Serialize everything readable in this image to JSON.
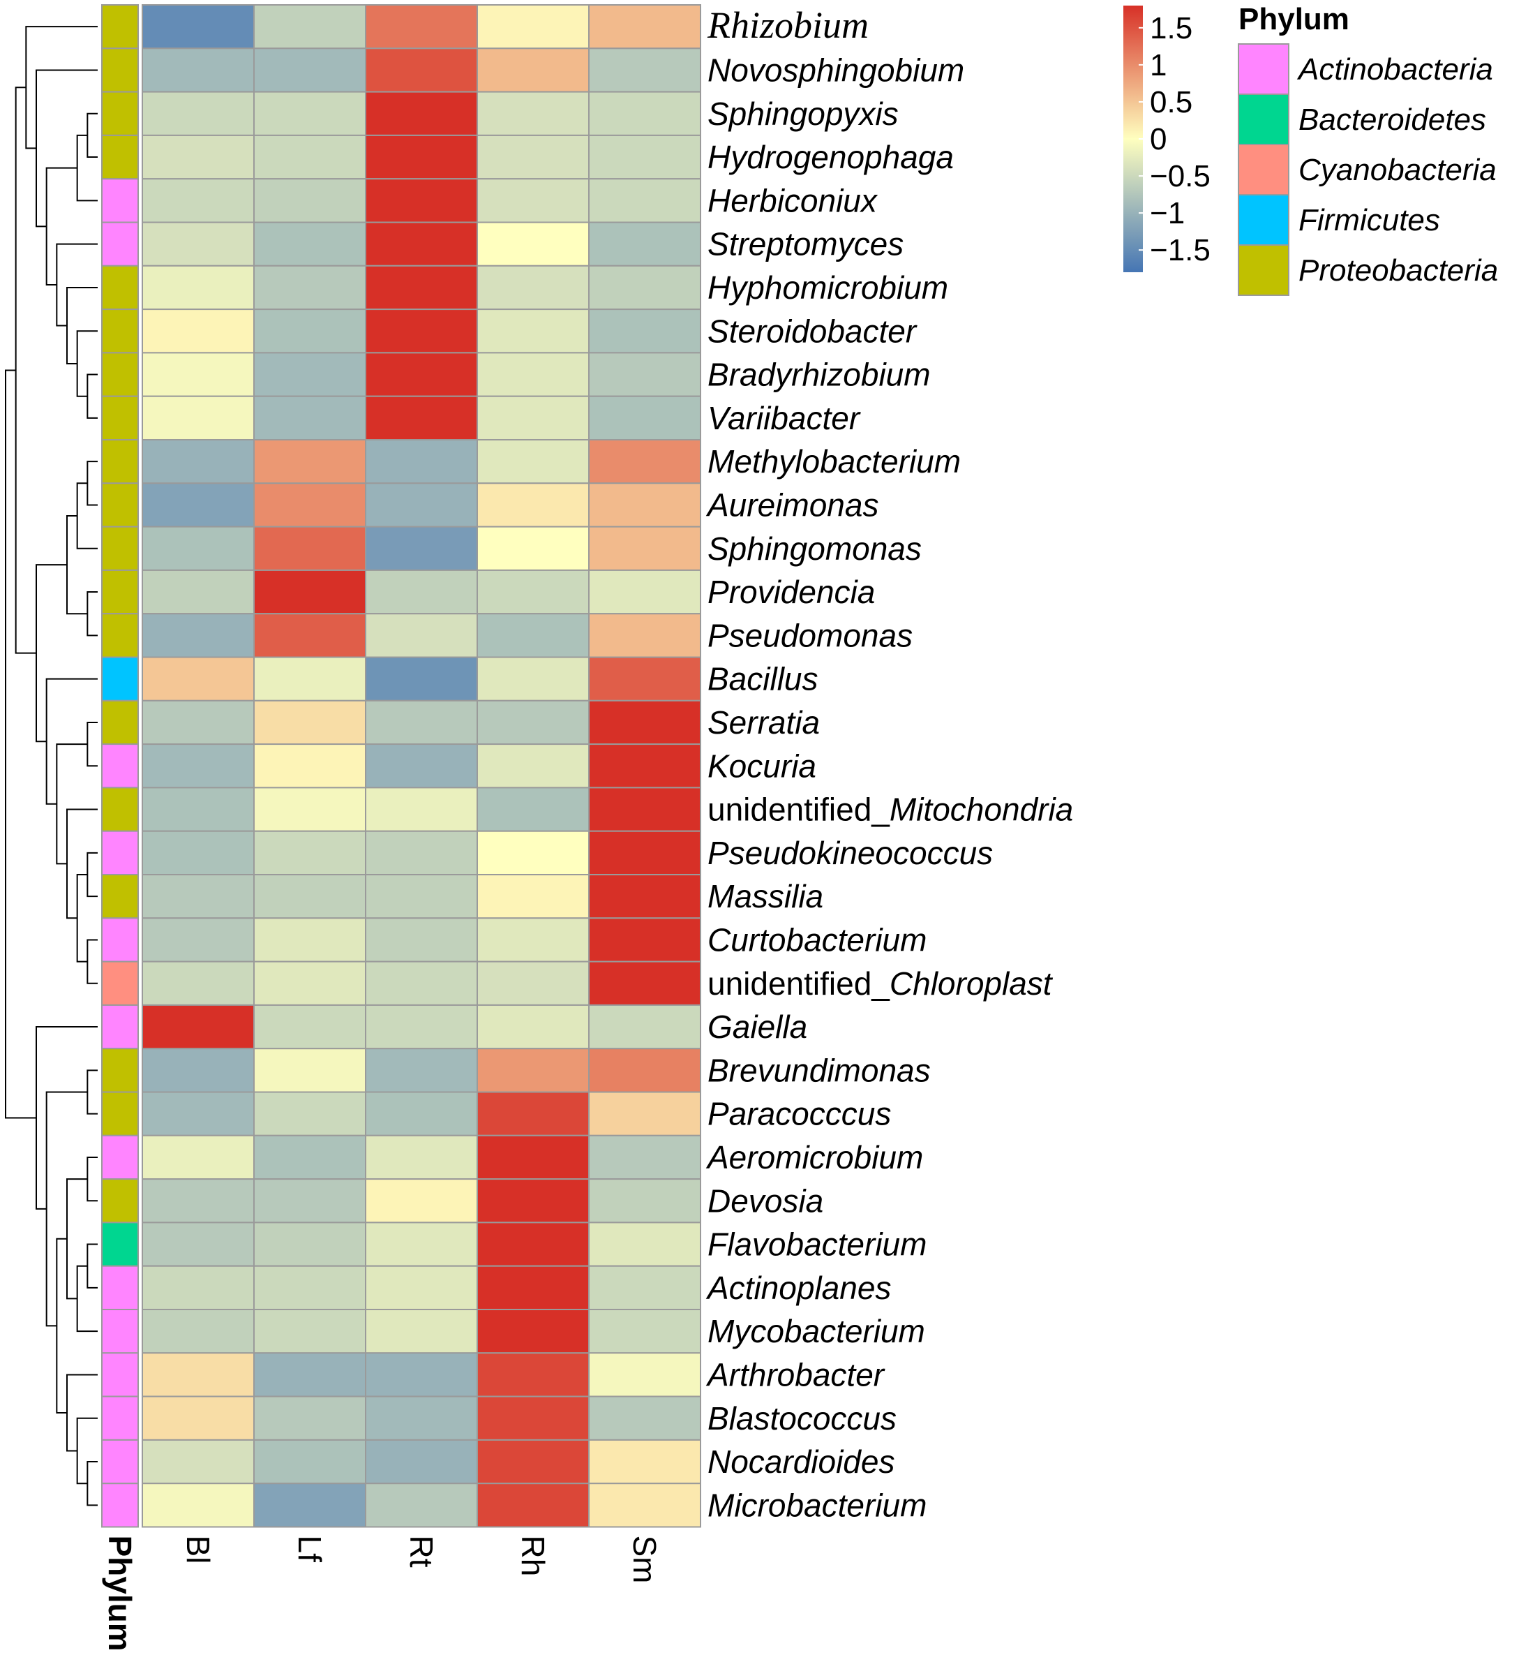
{
  "chart_data": {
    "type": "heatmap",
    "title": "",
    "columns": [
      "Bl",
      "Lf",
      "Rt",
      "Rh",
      "Sm"
    ],
    "annotation_label": "Phylum",
    "rows": [
      {
        "name": "Rhizobium",
        "phylum": "Proteobacteria",
        "values": [
          -1.5,
          -0.6,
          1.2,
          0.1,
          0.6
        ]
      },
      {
        "name": "Novosphingobium",
        "phylum": "Proteobacteria",
        "values": [
          -0.9,
          -0.9,
          1.5,
          0.6,
          -0.7
        ]
      },
      {
        "name": "Sphingopyxis",
        "phylum": "Proteobacteria",
        "values": [
          -0.5,
          -0.5,
          1.8,
          -0.4,
          -0.5
        ]
      },
      {
        "name": "Hydrogenophaga",
        "phylum": "Proteobacteria",
        "values": [
          -0.4,
          -0.5,
          1.8,
          -0.4,
          -0.5
        ]
      },
      {
        "name": "Herbiconiux",
        "phylum": "Actinobacteria",
        "values": [
          -0.5,
          -0.6,
          1.8,
          -0.4,
          -0.5
        ]
      },
      {
        "name": "Streptomyces",
        "phylum": "Actinobacteria",
        "values": [
          -0.4,
          -0.8,
          1.8,
          0.0,
          -0.8
        ]
      },
      {
        "name": "Hyphomicrobium",
        "phylum": "Proteobacteria",
        "values": [
          -0.2,
          -0.7,
          1.8,
          -0.4,
          -0.6
        ]
      },
      {
        "name": "Steroidobacter",
        "phylum": "Proteobacteria",
        "values": [
          0.1,
          -0.8,
          1.8,
          -0.3,
          -0.8
        ]
      },
      {
        "name": "Bradyrhizobium",
        "phylum": "Proteobacteria",
        "values": [
          -0.1,
          -0.9,
          1.8,
          -0.3,
          -0.7
        ]
      },
      {
        "name": "Variibacter",
        "phylum": "Proteobacteria",
        "values": [
          -0.1,
          -0.9,
          1.8,
          -0.3,
          -0.8
        ]
      },
      {
        "name": "Methylobacterium",
        "phylum": "Proteobacteria",
        "values": [
          -1.0,
          0.9,
          -1.0,
          -0.3,
          1.0
        ]
      },
      {
        "name": "Aureimonas",
        "phylum": "Proteobacteria",
        "values": [
          -1.2,
          1.0,
          -1.0,
          0.2,
          0.6
        ]
      },
      {
        "name": "Sphingomonas",
        "phylum": "Proteobacteria",
        "values": [
          -0.8,
          1.3,
          -1.3,
          0.0,
          0.6
        ]
      },
      {
        "name": "Providencia",
        "phylum": "Proteobacteria",
        "values": [
          -0.6,
          1.8,
          -0.6,
          -0.5,
          -0.3
        ]
      },
      {
        "name": "Pseudomonas",
        "phylum": "Proteobacteria",
        "values": [
          -1.0,
          1.4,
          -0.4,
          -0.8,
          0.6
        ]
      },
      {
        "name": "Bacillus",
        "phylum": "Firmicutes",
        "values": [
          0.5,
          -0.2,
          -1.4,
          -0.3,
          1.4
        ]
      },
      {
        "name": "Serratia",
        "phylum": "Proteobacteria",
        "values": [
          -0.7,
          0.3,
          -0.7,
          -0.7,
          1.8
        ]
      },
      {
        "name": "Kocuria",
        "phylum": "Actinobacteria",
        "values": [
          -0.9,
          0.1,
          -1.0,
          -0.3,
          1.8
        ]
      },
      {
        "name": "unidentified_Mitochondria",
        "phylum": "Proteobacteria",
        "values": [
          -0.8,
          -0.1,
          -0.2,
          -0.8,
          1.8
        ]
      },
      {
        "name": "Pseudokineococcus",
        "phylum": "Actinobacteria",
        "values": [
          -0.8,
          -0.5,
          -0.6,
          0.0,
          1.8
        ]
      },
      {
        "name": "Massilia",
        "phylum": "Proteobacteria",
        "values": [
          -0.7,
          -0.6,
          -0.6,
          0.1,
          1.8
        ]
      },
      {
        "name": "Curtobacterium",
        "phylum": "Actinobacteria",
        "values": [
          -0.7,
          -0.3,
          -0.6,
          -0.3,
          1.8
        ]
      },
      {
        "name": "unidentified_Chloroplast",
        "phylum": "Cyanobacteria",
        "values": [
          -0.5,
          -0.3,
          -0.5,
          -0.4,
          1.8
        ]
      },
      {
        "name": "Gaiella",
        "phylum": "Actinobacteria",
        "values": [
          1.8,
          -0.5,
          -0.5,
          -0.3,
          -0.5
        ]
      },
      {
        "name": "Brevundimonas",
        "phylum": "Proteobacteria",
        "values": [
          -1.0,
          -0.1,
          -0.9,
          0.9,
          1.1
        ]
      },
      {
        "name": "Paracocccus",
        "phylum": "Proteobacteria",
        "values": [
          -0.9,
          -0.5,
          -0.8,
          1.6,
          0.4
        ]
      },
      {
        "name": "Aeromicrobium",
        "phylum": "Actinobacteria",
        "values": [
          -0.2,
          -0.8,
          -0.3,
          1.8,
          -0.7
        ]
      },
      {
        "name": "Devosia",
        "phylum": "Proteobacteria",
        "values": [
          -0.7,
          -0.7,
          0.1,
          1.8,
          -0.6
        ]
      },
      {
        "name": "Flavobacterium",
        "phylum": "Bacteroidetes",
        "values": [
          -0.7,
          -0.6,
          -0.3,
          1.8,
          -0.3
        ]
      },
      {
        "name": "Actinoplanes",
        "phylum": "Actinobacteria",
        "values": [
          -0.5,
          -0.5,
          -0.3,
          1.8,
          -0.5
        ]
      },
      {
        "name": "Mycobacterium",
        "phylum": "Actinobacteria",
        "values": [
          -0.6,
          -0.5,
          -0.3,
          1.8,
          -0.5
        ]
      },
      {
        "name": "Arthrobacter",
        "phylum": "Actinobacteria",
        "values": [
          0.3,
          -1.0,
          -1.0,
          1.6,
          -0.1
        ]
      },
      {
        "name": "Blastococcus",
        "phylum": "Actinobacteria",
        "values": [
          0.3,
          -0.7,
          -0.9,
          1.6,
          -0.7
        ]
      },
      {
        "name": "Nocardioides",
        "phylum": "Actinobacteria",
        "values": [
          -0.4,
          -0.8,
          -1.0,
          1.6,
          0.2
        ]
      },
      {
        "name": "Microbacterium",
        "phylum": "Actinobacteria",
        "values": [
          -0.1,
          -1.2,
          -0.7,
          1.6,
          0.2
        ]
      }
    ],
    "color_scale": {
      "min": -1.8,
      "max": 1.8,
      "ticks": [
        1.5,
        1,
        0.5,
        0,
        -0.5,
        -1,
        -1.5
      ],
      "tick_labels": [
        "1.5",
        "1",
        "0.5",
        "0",
        "−0.5",
        "−1",
        "−1.5"
      ],
      "low_color": "#4575b4",
      "mid_color": "#ffffbf",
      "high_color": "#d73027"
    },
    "legend": {
      "title": "Phylum",
      "entries": [
        {
          "name": "Actinobacteria",
          "color": "#ff85ff"
        },
        {
          "name": "Bacteroidetes",
          "color": "#00d690"
        },
        {
          "name": "Cyanobacteria",
          "color": "#ff8f80"
        },
        {
          "name": "Firmicutes",
          "color": "#00c4ff"
        },
        {
          "name": "Proteobacteria",
          "color": "#c0c000"
        }
      ]
    }
  }
}
